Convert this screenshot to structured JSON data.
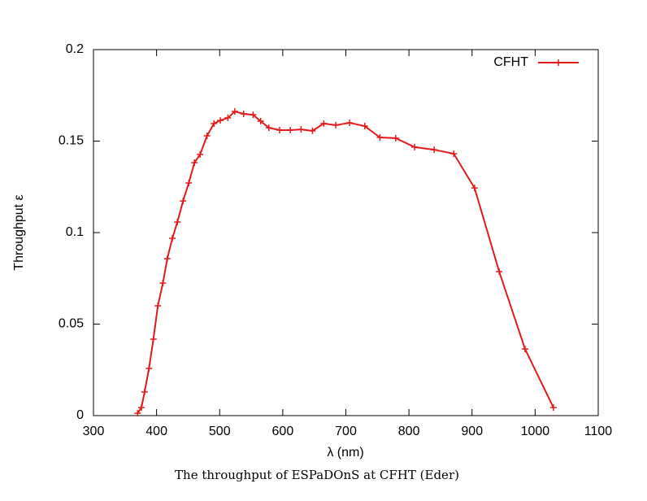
{
  "chart_data": {
    "type": "line",
    "xlabel": "λ (nm)",
    "ylabel": "Throughput ε",
    "caption": "The throughput of ESPaDOnS at CFHT (Eder)",
    "x": [
      370,
      376,
      381,
      388,
      395,
      402,
      410,
      417,
      425,
      433,
      442,
      451,
      460,
      469,
      480,
      491,
      501,
      513,
      524,
      538,
      553,
      565,
      578,
      595,
      612,
      629,
      647,
      665,
      684,
      706,
      730,
      754,
      779,
      809,
      840,
      871,
      904,
      943,
      984,
      1029
    ],
    "series": [
      {
        "name": "CFHT",
        "color": "#e31a1c",
        "values": [
          0.0013,
          0.0044,
          0.0129,
          0.0258,
          0.0418,
          0.06,
          0.0724,
          0.0858,
          0.0969,
          0.1058,
          0.1173,
          0.1271,
          0.1382,
          0.1427,
          0.1529,
          0.1596,
          0.1613,
          0.1627,
          0.1662,
          0.1649,
          0.1644,
          0.1609,
          0.1573,
          0.156,
          0.156,
          0.1564,
          0.1556,
          0.1596,
          0.1587,
          0.16,
          0.1582,
          0.152,
          0.1516,
          0.1467,
          0.1453,
          0.1431,
          0.1244,
          0.0787,
          0.0364,
          0.0044
        ]
      }
    ],
    "xlim": [
      300,
      1100
    ],
    "xticks": [
      300,
      400,
      500,
      600,
      700,
      800,
      900,
      1000,
      1100
    ],
    "ylim": [
      0,
      0.2
    ],
    "yticks": [
      0,
      0.05,
      0.1,
      0.15,
      0.2
    ],
    "grid": false,
    "legend": "top-right"
  }
}
